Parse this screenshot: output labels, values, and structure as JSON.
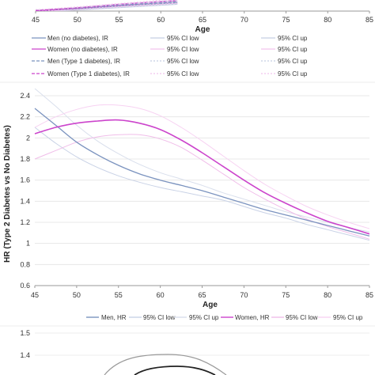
{
  "chart_data": [
    {
      "type": "line",
      "xlabel": "Age",
      "ylabel": "",
      "xlim": [
        45,
        85
      ],
      "x_ticks": [
        "45",
        "50",
        "55",
        "60",
        "65",
        "70",
        "75",
        "80",
        "85"
      ],
      "legend_placement": "bottom",
      "colors": {
        "men": "#7b93bf",
        "women": "#cc44cc",
        "ci_men": "#c5cfe4",
        "ci_women": "#f2c4ee"
      },
      "series": [
        {
          "name": "Men (no diabetes), IR",
          "x": [
            45,
            50,
            55,
            60,
            62
          ],
          "values": [
            1.0,
            1.05,
            1.1,
            1.15,
            1.17
          ]
        },
        {
          "name": "Women (no diabetes), IR",
          "x": [
            45,
            50,
            55,
            60,
            62
          ],
          "values": [
            1.0,
            1.06,
            1.12,
            1.18,
            1.2
          ]
        },
        {
          "name": "95% CI low",
          "x": [
            45,
            50,
            55,
            60,
            62
          ],
          "values": [
            0.98,
            1.02,
            1.07,
            1.12,
            1.14
          ]
        },
        {
          "name": "95% CI up",
          "x": [
            45,
            50,
            55,
            60,
            62
          ],
          "values": [
            1.02,
            1.07,
            1.13,
            1.18,
            1.2
          ]
        },
        {
          "name": "95% CI low",
          "x": [
            45,
            50,
            55,
            60,
            62
          ],
          "values": [
            0.98,
            1.03,
            1.09,
            1.14,
            1.16
          ]
        },
        {
          "name": "95% CI up",
          "x": [
            45,
            50,
            55,
            60,
            62
          ],
          "values": [
            1.02,
            1.08,
            1.15,
            1.21,
            1.23
          ]
        },
        {
          "name": "Men (Type 1 diabetes), IR",
          "x": [
            45,
            50,
            55,
            60,
            62
          ],
          "values": [
            1.01,
            1.06,
            1.12,
            1.17,
            1.19
          ]
        },
        {
          "name": "Women (Type 1 diabetes), IR",
          "x": [
            45,
            50,
            55,
            60,
            62
          ],
          "values": [
            1.01,
            1.07,
            1.14,
            1.2,
            1.22
          ]
        },
        {
          "name": "95% CI low",
          "x": [
            45,
            50,
            55,
            60,
            62
          ],
          "values": [
            0.99,
            1.03,
            1.08,
            1.13,
            1.15
          ]
        },
        {
          "name": "95% CI up",
          "x": [
            45,
            50,
            55,
            60,
            62
          ],
          "values": [
            1.03,
            1.08,
            1.14,
            1.2,
            1.22
          ]
        },
        {
          "name": "95% CI low",
          "x": [
            45,
            50,
            55,
            60,
            62
          ],
          "values": [
            0.99,
            1.04,
            1.1,
            1.15,
            1.17
          ]
        },
        {
          "name": "95% CI up",
          "x": [
            45,
            50,
            55,
            60,
            62
          ],
          "values": [
            1.03,
            1.09,
            1.16,
            1.23,
            1.25
          ]
        }
      ]
    },
    {
      "type": "line",
      "xlabel": "Age",
      "ylabel": "HR (Type 2 Diabetes vs No Diabetes)",
      "xlim": [
        45,
        85
      ],
      "ylim": [
        0.6,
        2.4
      ],
      "x_ticks": [
        "45",
        "50",
        "55",
        "60",
        "65",
        "70",
        "75",
        "80",
        "85"
      ],
      "y_ticks": [
        "0.6",
        "0.8",
        "1",
        "1.2",
        "1.4",
        "1.6",
        "1.8",
        "2",
        "2.2",
        "2.4"
      ],
      "grid": "horizontal",
      "legend_placement": "bottom",
      "colors": {
        "men": "#7b93bf",
        "men_ci_low": "#c9d2e6",
        "men_ci_up": "#d9dfec",
        "women": "#cc44cc",
        "women_ci_low": "#f0bde9",
        "women_ci_up": "#f7d2f2"
      },
      "x": [
        45,
        47.5,
        50,
        52.5,
        55,
        57.5,
        60,
        62.5,
        65,
        67.5,
        70,
        72.5,
        75,
        77.5,
        80,
        82.5,
        85
      ],
      "series": [
        {
          "name": "Men, HR",
          "values": [
            2.28,
            2.12,
            1.96,
            1.84,
            1.74,
            1.66,
            1.6,
            1.55,
            1.5,
            1.44,
            1.38,
            1.32,
            1.27,
            1.22,
            1.17,
            1.12,
            1.07
          ]
        },
        {
          "name": "95% CI low",
          "values": [
            2.1,
            1.95,
            1.82,
            1.72,
            1.64,
            1.58,
            1.53,
            1.49,
            1.45,
            1.41,
            1.35,
            1.29,
            1.24,
            1.18,
            1.13,
            1.08,
            1.03
          ]
        },
        {
          "name": "95% CI up",
          "values": [
            2.48,
            2.3,
            2.12,
            1.97,
            1.85,
            1.75,
            1.67,
            1.61,
            1.55,
            1.48,
            1.42,
            1.36,
            1.3,
            1.25,
            1.2,
            1.15,
            1.11
          ]
        },
        {
          "name": "Women, HR",
          "values": [
            2.04,
            2.1,
            2.14,
            2.16,
            2.17,
            2.14,
            2.08,
            1.98,
            1.86,
            1.73,
            1.6,
            1.48,
            1.38,
            1.29,
            1.21,
            1.15,
            1.09
          ]
        },
        {
          "name": "95% CI low",
          "values": [
            1.8,
            1.88,
            1.96,
            2.01,
            2.03,
            2.03,
            1.99,
            1.91,
            1.79,
            1.66,
            1.53,
            1.42,
            1.32,
            1.23,
            1.16,
            1.1,
            1.04
          ]
        },
        {
          "name": "95% CI up",
          "values": [
            2.1,
            2.2,
            2.27,
            2.31,
            2.31,
            2.28,
            2.21,
            2.1,
            1.97,
            1.83,
            1.69,
            1.56,
            1.45,
            1.35,
            1.27,
            1.2,
            1.14
          ]
        }
      ]
    },
    {
      "type": "line",
      "xlabel": "",
      "ylabel": "",
      "ylim": [
        1.3,
        1.5
      ],
      "y_ticks": [
        "1.4",
        "1.5"
      ],
      "grid": "horizontal",
      "colors": {
        "outer": "#9a9a9a",
        "inner": "#222222"
      }
    }
  ]
}
